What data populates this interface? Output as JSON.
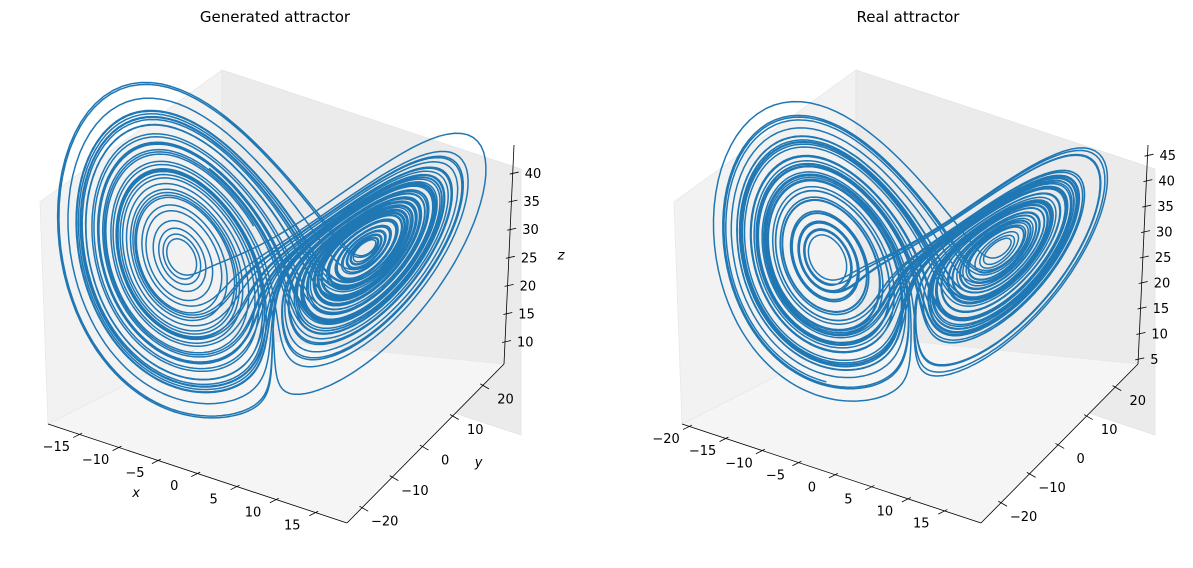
{
  "chart_data": [
    {
      "type": "line",
      "title": "Generated attractor",
      "projection": "3d",
      "series_color": "#1f77b4",
      "xlabel": "x",
      "ylabel": "y",
      "zlabel": "z",
      "xlim": [
        -19,
        19
      ],
      "ylim": [
        -25,
        27
      ],
      "zlim": [
        6,
        45
      ],
      "xticks": [
        "−15",
        "−10",
        "−5",
        "0",
        "5",
        "10",
        "15"
      ],
      "xtick_values": [
        -15,
        -10,
        -5,
        0,
        5,
        10,
        15
      ],
      "yticks": [
        "−20",
        "−10",
        "0",
        "10",
        "20"
      ],
      "ytick_values": [
        -20,
        -10,
        0,
        10,
        20
      ],
      "zticks": [
        "10",
        "15",
        "20",
        "25",
        "30",
        "35",
        "40"
      ],
      "ztick_values": [
        10,
        15,
        20,
        25,
        30,
        35,
        40
      ],
      "curve": "lorenz",
      "params": {
        "sigma": 10,
        "rho": 28,
        "beta": 2.6667
      },
      "start": [
        1,
        1,
        20
      ]
    },
    {
      "type": "line",
      "title": "Real attractor",
      "projection": "3d",
      "series_color": "#1f77b4",
      "xlabel": "",
      "ylabel": "",
      "zlabel": "",
      "xlim": [
        -21,
        20
      ],
      "ylim": [
        -27,
        28
      ],
      "zlim": [
        4,
        47
      ],
      "xticks": [
        "−20",
        "−15",
        "−10",
        "−5",
        "0",
        "5",
        "10",
        "15"
      ],
      "xtick_values": [
        -20,
        -15,
        -10,
        -5,
        0,
        5,
        10,
        15
      ],
      "yticks": [
        "−20",
        "−10",
        "0",
        "10",
        "20"
      ],
      "ytick_values": [
        -20,
        -10,
        0,
        10,
        20
      ],
      "zticks": [
        "5",
        "10",
        "15",
        "20",
        "25",
        "30",
        "35",
        "40",
        "45"
      ],
      "ztick_values": [
        5,
        10,
        15,
        20,
        25,
        30,
        35,
        40,
        45
      ],
      "curve": "lorenz",
      "params": {
        "sigma": 10,
        "rho": 28,
        "beta": 2.6667
      },
      "start": [
        -1,
        2,
        25
      ]
    }
  ]
}
